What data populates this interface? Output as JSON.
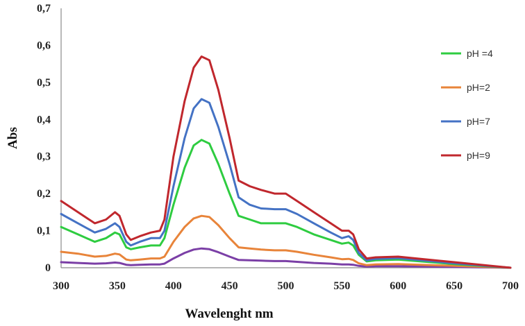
{
  "chart_data": {
    "type": "line",
    "xlabel": "Wavelenght nm",
    "ylabel": "Abs",
    "xlim": [
      300,
      700
    ],
    "ylim": [
      0,
      0.7
    ],
    "x_ticks": [
      "300",
      "350",
      "400",
      "450",
      "500",
      "550",
      "600",
      "650",
      "700"
    ],
    "y_ticks": [
      "0",
      "0,1",
      "0,2",
      "0,3",
      "0,4",
      "0,5",
      "0,6",
      "0,7"
    ],
    "grid": false,
    "legend_position": "right",
    "series": [
      {
        "name": "pH=9",
        "color": "#c0272d",
        "points": [
          [
            300,
            0.18
          ],
          [
            315,
            0.15
          ],
          [
            330,
            0.12
          ],
          [
            340,
            0.13
          ],
          [
            348,
            0.15
          ],
          [
            352,
            0.14
          ],
          [
            358,
            0.09
          ],
          [
            362,
            0.075
          ],
          [
            370,
            0.085
          ],
          [
            380,
            0.095
          ],
          [
            388,
            0.1
          ],
          [
            392,
            0.13
          ],
          [
            400,
            0.3
          ],
          [
            410,
            0.45
          ],
          [
            418,
            0.54
          ],
          [
            425,
            0.57
          ],
          [
            432,
            0.56
          ],
          [
            440,
            0.48
          ],
          [
            450,
            0.35
          ],
          [
            458,
            0.235
          ],
          [
            468,
            0.22
          ],
          [
            478,
            0.21
          ],
          [
            490,
            0.2
          ],
          [
            500,
            0.2
          ],
          [
            510,
            0.18
          ],
          [
            525,
            0.15
          ],
          [
            540,
            0.12
          ],
          [
            550,
            0.1
          ],
          [
            556,
            0.1
          ],
          [
            560,
            0.09
          ],
          [
            565,
            0.05
          ],
          [
            572,
            0.025
          ],
          [
            580,
            0.028
          ],
          [
            600,
            0.03
          ],
          [
            650,
            0.015
          ],
          [
            700,
            0.0
          ]
        ]
      },
      {
        "name": "pH=7",
        "color": "#4472c4",
        "points": [
          [
            300,
            0.145
          ],
          [
            315,
            0.12
          ],
          [
            330,
            0.095
          ],
          [
            340,
            0.105
          ],
          [
            348,
            0.12
          ],
          [
            352,
            0.11
          ],
          [
            358,
            0.07
          ],
          [
            362,
            0.06
          ],
          [
            370,
            0.07
          ],
          [
            380,
            0.08
          ],
          [
            388,
            0.08
          ],
          [
            392,
            0.1
          ],
          [
            400,
            0.22
          ],
          [
            410,
            0.35
          ],
          [
            418,
            0.43
          ],
          [
            425,
            0.455
          ],
          [
            432,
            0.445
          ],
          [
            440,
            0.38
          ],
          [
            450,
            0.28
          ],
          [
            458,
            0.19
          ],
          [
            468,
            0.17
          ],
          [
            478,
            0.16
          ],
          [
            490,
            0.158
          ],
          [
            500,
            0.158
          ],
          [
            510,
            0.145
          ],
          [
            525,
            0.12
          ],
          [
            540,
            0.095
          ],
          [
            550,
            0.08
          ],
          [
            556,
            0.085
          ],
          [
            560,
            0.075
          ],
          [
            565,
            0.04
          ],
          [
            572,
            0.02
          ],
          [
            580,
            0.024
          ],
          [
            600,
            0.026
          ],
          [
            650,
            0.012
          ],
          [
            700,
            0.0
          ]
        ]
      },
      {
        "name": "pH =4",
        "color": "#2ecc40",
        "points": [
          [
            300,
            0.11
          ],
          [
            315,
            0.09
          ],
          [
            330,
            0.07
          ],
          [
            340,
            0.08
          ],
          [
            348,
            0.095
          ],
          [
            352,
            0.09
          ],
          [
            358,
            0.055
          ],
          [
            362,
            0.05
          ],
          [
            370,
            0.055
          ],
          [
            380,
            0.06
          ],
          [
            388,
            0.06
          ],
          [
            392,
            0.08
          ],
          [
            400,
            0.17
          ],
          [
            410,
            0.27
          ],
          [
            418,
            0.33
          ],
          [
            425,
            0.345
          ],
          [
            432,
            0.335
          ],
          [
            440,
            0.28
          ],
          [
            450,
            0.2
          ],
          [
            458,
            0.14
          ],
          [
            468,
            0.13
          ],
          [
            478,
            0.12
          ],
          [
            490,
            0.12
          ],
          [
            500,
            0.12
          ],
          [
            510,
            0.11
          ],
          [
            525,
            0.09
          ],
          [
            540,
            0.075
          ],
          [
            550,
            0.065
          ],
          [
            556,
            0.068
          ],
          [
            560,
            0.06
          ],
          [
            565,
            0.035
          ],
          [
            572,
            0.017
          ],
          [
            580,
            0.02
          ],
          [
            600,
            0.022
          ],
          [
            650,
            0.01
          ],
          [
            700,
            0.0
          ]
        ]
      },
      {
        "name": "pH=2",
        "color": "#e8843a",
        "points": [
          [
            300,
            0.043
          ],
          [
            315,
            0.038
          ],
          [
            330,
            0.03
          ],
          [
            340,
            0.032
          ],
          [
            348,
            0.038
          ],
          [
            352,
            0.036
          ],
          [
            358,
            0.022
          ],
          [
            362,
            0.02
          ],
          [
            370,
            0.022
          ],
          [
            380,
            0.025
          ],
          [
            388,
            0.025
          ],
          [
            392,
            0.03
          ],
          [
            400,
            0.07
          ],
          [
            410,
            0.11
          ],
          [
            418,
            0.133
          ],
          [
            425,
            0.14
          ],
          [
            432,
            0.137
          ],
          [
            440,
            0.115
          ],
          [
            450,
            0.08
          ],
          [
            458,
            0.055
          ],
          [
            468,
            0.052
          ],
          [
            478,
            0.049
          ],
          [
            490,
            0.047
          ],
          [
            500,
            0.047
          ],
          [
            510,
            0.043
          ],
          [
            525,
            0.035
          ],
          [
            540,
            0.028
          ],
          [
            550,
            0.023
          ],
          [
            556,
            0.024
          ],
          [
            560,
            0.021
          ],
          [
            565,
            0.012
          ],
          [
            572,
            0.007
          ],
          [
            580,
            0.009
          ],
          [
            600,
            0.01
          ],
          [
            650,
            0.005
          ],
          [
            700,
            0.0
          ]
        ]
      },
      {
        "color": "#7b3fa6",
        "points": [
          [
            300,
            0.015
          ],
          [
            315,
            0.013
          ],
          [
            330,
            0.011
          ],
          [
            340,
            0.012
          ],
          [
            348,
            0.014
          ],
          [
            352,
            0.013
          ],
          [
            358,
            0.008
          ],
          [
            362,
            0.007
          ],
          [
            370,
            0.008
          ],
          [
            380,
            0.009
          ],
          [
            388,
            0.009
          ],
          [
            392,
            0.011
          ],
          [
            400,
            0.025
          ],
          [
            410,
            0.04
          ],
          [
            418,
            0.049
          ],
          [
            425,
            0.052
          ],
          [
            432,
            0.05
          ],
          [
            440,
            0.042
          ],
          [
            450,
            0.03
          ],
          [
            458,
            0.021
          ],
          [
            468,
            0.02
          ],
          [
            478,
            0.019
          ],
          [
            490,
            0.018
          ],
          [
            500,
            0.018
          ],
          [
            510,
            0.016
          ],
          [
            525,
            0.013
          ],
          [
            540,
            0.011
          ],
          [
            550,
            0.009
          ],
          [
            556,
            0.009
          ],
          [
            560,
            0.008
          ],
          [
            565,
            0.005
          ],
          [
            572,
            0.003
          ],
          [
            580,
            0.004
          ],
          [
            600,
            0.004
          ],
          [
            650,
            0.002
          ],
          [
            700,
            0.0
          ]
        ]
      }
    ],
    "legend": [
      {
        "label": "pH =4",
        "color": "#2ecc40"
      },
      {
        "label": "pH=2",
        "color": "#e8843a"
      },
      {
        "label": "pH=7",
        "color": "#4472c4"
      },
      {
        "label": "pH=9",
        "color": "#c0272d"
      }
    ]
  }
}
